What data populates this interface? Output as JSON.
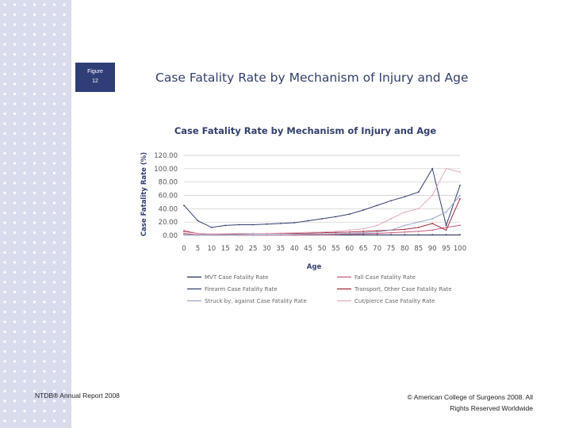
{
  "figure_label": {
    "line1": "Figure",
    "line2": "12"
  },
  "slide_title": "Case Fatality Rate by Mechanism of Injury and Age",
  "footer": {
    "left": "NTDB® Annual Report 2008",
    "right_line1": "© American College of Surgeons 2008.  All",
    "right_line2": "Rights Reserved Worldwide"
  },
  "colors": {
    "slate": "#34406e",
    "strip": "#d8dced",
    "dot": "#ffffff"
  },
  "chart_data": {
    "type": "line",
    "title": "Case Fatality Rate by Mechanism of Injury and Age",
    "xlabel": "Age",
    "ylabel": "Case Fatality Rate (%)",
    "xlim": [
      0,
      100
    ],
    "ylim": [
      0,
      120
    ],
    "y_ticks": [
      "0.00",
      "20.00",
      "40.00",
      "60.00",
      "80.00",
      "100.00",
      "120.00"
    ],
    "x_ticks": [
      "0",
      "5",
      "10",
      "15",
      "20",
      "25",
      "30",
      "35",
      "40",
      "45",
      "50",
      "55",
      "60",
      "65",
      "70",
      "75",
      "80",
      "85",
      "90",
      "95",
      "100"
    ],
    "grid": "horizontal",
    "legend_position": "bottom",
    "x": [
      0,
      5,
      10,
      15,
      20,
      25,
      30,
      35,
      40,
      45,
      50,
      55,
      60,
      65,
      70,
      75,
      80,
      85,
      90,
      95,
      100
    ],
    "series": [
      {
        "name": "MVT Case Fatality Rate",
        "color": "#1f2a5c",
        "values": [
          1,
          1,
          1,
          1,
          1,
          1,
          1,
          1,
          1,
          1,
          1,
          1,
          1,
          1,
          1,
          1,
          1,
          1,
          1,
          1,
          1
        ]
      },
      {
        "name": "Fall Case Fatality Rate",
        "color": "#c9587d",
        "values": [
          3,
          1,
          0.5,
          0.5,
          0.5,
          0.5,
          0.5,
          0.5,
          0.5,
          1,
          1,
          1.5,
          2,
          2.5,
          3,
          4,
          5,
          6,
          8,
          12,
          15
        ]
      },
      {
        "name": "Firearm Case Fatality Rate",
        "color": "#33406f",
        "values": [
          45,
          22,
          12,
          15,
          16,
          16,
          17,
          18,
          19,
          22,
          25,
          28,
          32,
          38,
          45,
          52,
          58,
          65,
          100,
          15,
          75
        ]
      },
      {
        "name": "Transport, Other Case Fatality Rate",
        "color": "#a42a3e",
        "values": [
          6,
          3,
          2,
          2,
          2.5,
          3,
          3,
          3,
          3,
          3.5,
          4,
          4.5,
          5,
          6,
          7,
          8,
          9,
          12,
          18,
          8,
          55
        ]
      },
      {
        "name": "Struck by, against Case Fatality Rate",
        "color": "#9aa6c8",
        "values": [
          1,
          0.5,
          0.5,
          0.5,
          1,
          1,
          1,
          1,
          1.5,
          2,
          2,
          2.5,
          3,
          4,
          5,
          8,
          15,
          20,
          25,
          35,
          60
        ]
      },
      {
        "name": "Cut/pierce Case Fatality Rate",
        "color": "#e3a9c1",
        "values": [
          8,
          3,
          2,
          2.5,
          3,
          3,
          3,
          3.5,
          4,
          4.5,
          5,
          6,
          8,
          10,
          15,
          25,
          35,
          40,
          60,
          100,
          95
        ]
      }
    ]
  }
}
